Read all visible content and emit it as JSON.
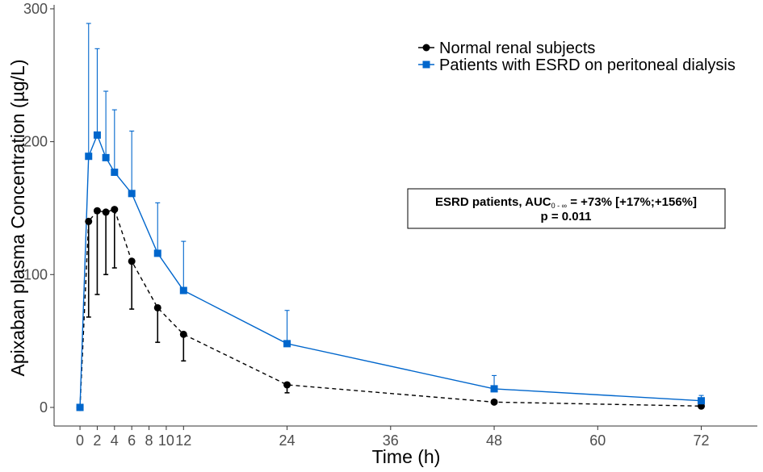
{
  "chart_data": {
    "type": "line",
    "ylabel": "Apixaban plasma Concentration (µg/L)",
    "xlabel": "Time (h)",
    "xlim": [
      -3,
      78.5
    ],
    "ylim": [
      -14,
      303
    ],
    "x_ticks": [
      0,
      2,
      4,
      6,
      8,
      10,
      12,
      24,
      36,
      48,
      60,
      72
    ],
    "y_ticks": [
      0,
      100,
      200,
      300
    ],
    "grid": false,
    "legend_position": "top-right",
    "series": [
      {
        "name": "Normal renal subjects",
        "color": "#000000",
        "line_style": "dashed",
        "marker": "circle",
        "error_direction": "down",
        "x": [
          0,
          1,
          2,
          3,
          4,
          6,
          9,
          12,
          24,
          48,
          72
        ],
        "y": [
          0,
          140,
          148,
          147,
          149,
          110,
          75,
          55,
          17,
          4,
          1
        ],
        "error": [
          0,
          72,
          63,
          47,
          44,
          36,
          26,
          20,
          6,
          0,
          0
        ]
      },
      {
        "name": "Patients with ESRD on peritoneal dialysis",
        "color": "#0066CC",
        "line_style": "solid",
        "marker": "square",
        "error_direction": "up",
        "x": [
          0,
          1,
          2,
          3,
          4,
          6,
          9,
          12,
          24,
          48,
          72
        ],
        "y": [
          0,
          189,
          205,
          188,
          177,
          161,
          116,
          88,
          48,
          14,
          5
        ],
        "error": [
          0,
          100,
          65,
          50,
          47,
          47,
          38,
          37,
          25,
          10,
          4
        ]
      }
    ],
    "annotation": {
      "line1_prefix": "ESRD patients, AUC",
      "line1_sub": "0 - ∞",
      "line1_suffix": " = +73% [+17%;+156%]",
      "line2": "p = 0.011"
    }
  }
}
